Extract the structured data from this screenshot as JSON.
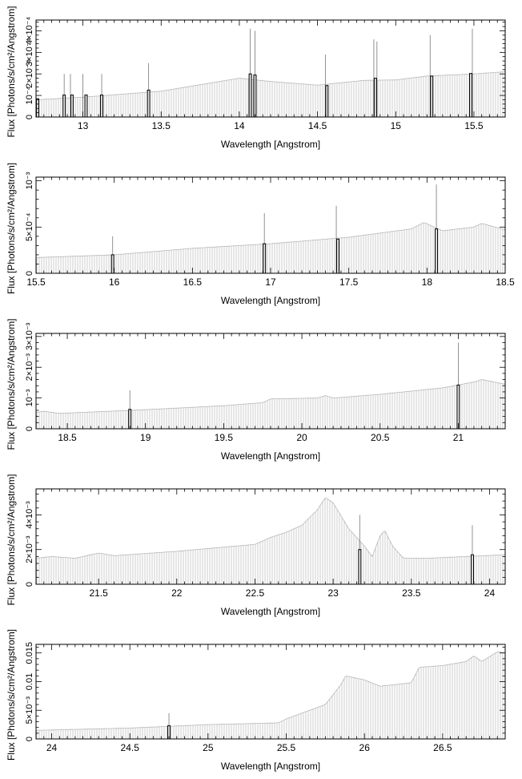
{
  "colors": {
    "background": "#ffffff",
    "continuum": "#b8b8b8",
    "line": "#777777",
    "band": "#000000",
    "frame": "#000000"
  },
  "chart_data": [
    {
      "type": "area",
      "xlabel": "Wavelength [Angstrom]",
      "ylabel": "Flux [Photons/s/cm²/Angstrom]",
      "xlim": [
        12.7,
        15.7
      ],
      "ylim": [
        0,
        0.00045
      ],
      "xticks": [
        {
          "v": 13,
          "t": "13"
        },
        {
          "v": 13.5,
          "t": "13.5"
        },
        {
          "v": 14,
          "t": "14"
        },
        {
          "v": 14.5,
          "t": "14.5"
        },
        {
          "v": 15,
          "t": "15"
        },
        {
          "v": 15.5,
          "t": "15.5"
        }
      ],
      "yticks": [
        {
          "v": 0,
          "t": "0"
        },
        {
          "v": 0.0001,
          "t": "10⁻⁴"
        },
        {
          "v": 0.0002,
          "t": "2×10⁻⁴"
        },
        {
          "v": 0.0003,
          "t": "3×10⁻⁴"
        },
        {
          "v": 0.0004,
          "t": "4×10⁻⁴"
        }
      ],
      "continuum": [
        [
          12.7,
          8e-05
        ],
        [
          13.0,
          9.2e-05
        ],
        [
          13.5,
          0.00012
        ],
        [
          14.0,
          0.00018
        ],
        [
          14.2,
          0.000165
        ],
        [
          14.5,
          0.000148
        ],
        [
          14.8,
          0.00017
        ],
        [
          15.0,
          0.000172
        ],
        [
          15.2,
          0.00019
        ],
        [
          15.5,
          0.0002
        ],
        [
          15.7,
          0.00021
        ]
      ],
      "lines": [
        [
          12.71,
          8.5e-05
        ],
        [
          12.88,
          0.0002
        ],
        [
          12.92,
          0.0002
        ],
        [
          13.0,
          0.0002
        ],
        [
          13.12,
          0.0002
        ],
        [
          13.42,
          0.00025
        ],
        [
          14.07,
          0.00041
        ],
        [
          14.1,
          0.0004
        ],
        [
          14.55,
          0.00029
        ],
        [
          14.86,
          0.00036
        ],
        [
          14.88,
          0.00035
        ],
        [
          15.22,
          0.00038
        ],
        [
          15.49,
          0.00041
        ]
      ],
      "bands": [
        [
          12.71,
          8.5e-05
        ],
        [
          12.88,
          0.000102
        ],
        [
          12.93,
          0.000102
        ],
        [
          13.02,
          0.000102
        ],
        [
          13.12,
          0.000102
        ],
        [
          13.42,
          0.000125
        ],
        [
          14.07,
          0.0002
        ],
        [
          14.1,
          0.000195
        ],
        [
          14.56,
          0.000146
        ],
        [
          14.87,
          0.00018
        ],
        [
          15.23,
          0.00019
        ],
        [
          15.48,
          0.000202
        ]
      ]
    },
    {
      "type": "area",
      "xlabel": "Wavelength [Angstrom]",
      "ylabel": "Flux [Photons/s/cm²/Angstrom]",
      "xlim": [
        15.5,
        18.5
      ],
      "ylim": [
        0,
        0.00104
      ],
      "xticks": [
        {
          "v": 15.5,
          "t": "15.5"
        },
        {
          "v": 16,
          "t": "16"
        },
        {
          "v": 16.5,
          "t": "16.5"
        },
        {
          "v": 17,
          "t": "17"
        },
        {
          "v": 17.5,
          "t": "17.5"
        },
        {
          "v": 18,
          "t": "18"
        },
        {
          "v": 18.5,
          "t": "18.5"
        }
      ],
      "yticks": [
        {
          "v": 0,
          "t": "0"
        },
        {
          "v": 0.0005,
          "t": "5×10⁻⁴"
        },
        {
          "v": 0.001,
          "t": "10⁻³"
        }
      ],
      "continuum": [
        [
          15.5,
          0.00017
        ],
        [
          16.0,
          0.0002
        ],
        [
          16.5,
          0.00027
        ],
        [
          17.0,
          0.00032
        ],
        [
          17.5,
          0.00039
        ],
        [
          17.9,
          0.00048
        ],
        [
          17.98,
          0.00055
        ],
        [
          18.1,
          0.00046
        ],
        [
          18.3,
          0.0005
        ],
        [
          18.35,
          0.00054
        ],
        [
          18.5,
          0.00047
        ]
      ],
      "lines": [
        [
          15.99,
          0.0004
        ],
        [
          16.96,
          0.00065
        ],
        [
          17.42,
          0.00073
        ],
        [
          18.06,
          0.00096
        ]
      ],
      "bands": [
        [
          15.99,
          0.0002
        ],
        [
          16.96,
          0.00032
        ],
        [
          17.43,
          0.00037
        ],
        [
          18.06,
          0.00048
        ]
      ]
    },
    {
      "type": "area",
      "xlabel": "Wavelength [Angstrom]",
      "ylabel": "Flux [Photons/s/cm²/Angstrom]",
      "xlim": [
        18.3,
        21.3
      ],
      "ylim": [
        0,
        0.0031
      ],
      "xticks": [
        {
          "v": 18.5,
          "t": "18.5"
        },
        {
          "v": 19,
          "t": "19"
        },
        {
          "v": 19.5,
          "t": "19.5"
        },
        {
          "v": 20,
          "t": "20"
        },
        {
          "v": 20.5,
          "t": "20.5"
        },
        {
          "v": 21,
          "t": "21"
        }
      ],
      "yticks": [
        {
          "v": 0,
          "t": "0"
        },
        {
          "v": 0.001,
          "t": "10⁻³"
        },
        {
          "v": 0.002,
          "t": "2×10⁻³"
        },
        {
          "v": 0.003,
          "t": "3×10⁻³"
        }
      ],
      "continuum": [
        [
          18.3,
          0.00053
        ],
        [
          18.35,
          0.00057
        ],
        [
          18.45,
          0.0005
        ],
        [
          19.0,
          0.00062
        ],
        [
          19.5,
          0.00075
        ],
        [
          19.75,
          0.00085
        ],
        [
          19.8,
          0.00097
        ],
        [
          20.1,
          0.001
        ],
        [
          20.15,
          0.00108
        ],
        [
          20.2,
          0.001
        ],
        [
          20.5,
          0.00112
        ],
        [
          20.9,
          0.00133
        ],
        [
          21.1,
          0.00152
        ],
        [
          21.15,
          0.0016
        ],
        [
          21.3,
          0.00145
        ]
      ],
      "lines": [
        [
          18.9,
          0.00125
        ],
        [
          21.0,
          0.0028
        ]
      ],
      "bands": [
        [
          18.9,
          0.00063
        ],
        [
          21.0,
          0.00142
        ]
      ]
    },
    {
      "type": "area",
      "xlabel": "Wavelength [Angstrom]",
      "ylabel": "Flux [Photons/s/cm²/Angstrom]",
      "xlim": [
        21.1,
        24.1
      ],
      "ylim": [
        0,
        0.0055
      ],
      "xticks": [
        {
          "v": 21.5,
          "t": "21.5"
        },
        {
          "v": 22,
          "t": "22"
        },
        {
          "v": 22.5,
          "t": "22.5"
        },
        {
          "v": 23,
          "t": "23"
        },
        {
          "v": 23.5,
          "t": "23.5"
        },
        {
          "v": 24,
          "t": "24"
        }
      ],
      "yticks": [
        {
          "v": 0,
          "t": "0"
        },
        {
          "v": 0.002,
          "t": "2×10⁻³"
        },
        {
          "v": 0.004,
          "t": "4×10⁻³"
        }
      ],
      "continuum": [
        [
          21.1,
          0.0015
        ],
        [
          21.2,
          0.0016
        ],
        [
          21.35,
          0.0015
        ],
        [
          21.5,
          0.0018
        ],
        [
          21.6,
          0.00165
        ],
        [
          22.0,
          0.0019
        ],
        [
          22.5,
          0.0023
        ],
        [
          22.6,
          0.0027
        ],
        [
          22.7,
          0.003
        ],
        [
          22.8,
          0.0034
        ],
        [
          22.9,
          0.0043
        ],
        [
          22.95,
          0.005
        ],
        [
          23.0,
          0.0047
        ],
        [
          23.1,
          0.0032
        ],
        [
          23.2,
          0.0022
        ],
        [
          23.25,
          0.0016
        ],
        [
          23.3,
          0.0028
        ],
        [
          23.33,
          0.0031
        ],
        [
          23.38,
          0.0022
        ],
        [
          23.45,
          0.0015
        ],
        [
          23.6,
          0.0015
        ],
        [
          24.1,
          0.0017
        ]
      ],
      "lines": [
        [
          23.17,
          0.004
        ],
        [
          23.89,
          0.0034
        ]
      ],
      "bands": [
        [
          23.17,
          0.002
        ],
        [
          23.89,
          0.0017
        ]
      ]
    },
    {
      "type": "area",
      "xlabel": "Wavelength [Angstrom]",
      "ylabel": "Flux [Photons/s/cm²/Angstrom]",
      "xlim": [
        23.9,
        26.9
      ],
      "ylim": [
        0,
        0.0165
      ],
      "xticks": [
        {
          "v": 24,
          "t": "24"
        },
        {
          "v": 24.5,
          "t": "24.5"
        },
        {
          "v": 25,
          "t": "25"
        },
        {
          "v": 25.5,
          "t": "25.5"
        },
        {
          "v": 26,
          "t": "26"
        },
        {
          "v": 26.5,
          "t": "26.5"
        }
      ],
      "yticks": [
        {
          "v": 0,
          "t": "0"
        },
        {
          "v": 0.005,
          "t": "5×10⁻³"
        },
        {
          "v": 0.01,
          "t": "0.01"
        },
        {
          "v": 0.015,
          "t": "0.015"
        }
      ],
      "continuum": [
        [
          23.9,
          0.0015
        ],
        [
          24.5,
          0.0019
        ],
        [
          25.0,
          0.0025
        ],
        [
          25.45,
          0.0028
        ],
        [
          25.5,
          0.0035
        ],
        [
          25.6,
          0.0045
        ],
        [
          25.75,
          0.006
        ],
        [
          25.85,
          0.0095
        ],
        [
          25.88,
          0.011
        ],
        [
          26.0,
          0.0103
        ],
        [
          26.1,
          0.0092
        ],
        [
          26.3,
          0.0098
        ],
        [
          26.35,
          0.0125
        ],
        [
          26.5,
          0.0128
        ],
        [
          26.65,
          0.0135
        ],
        [
          26.7,
          0.0145
        ],
        [
          26.75,
          0.0135
        ],
        [
          26.85,
          0.0152
        ],
        [
          26.9,
          0.015
        ]
      ],
      "lines": [
        [
          24.75,
          0.0045
        ]
      ],
      "bands": [
        [
          24.75,
          0.0023
        ]
      ]
    }
  ]
}
